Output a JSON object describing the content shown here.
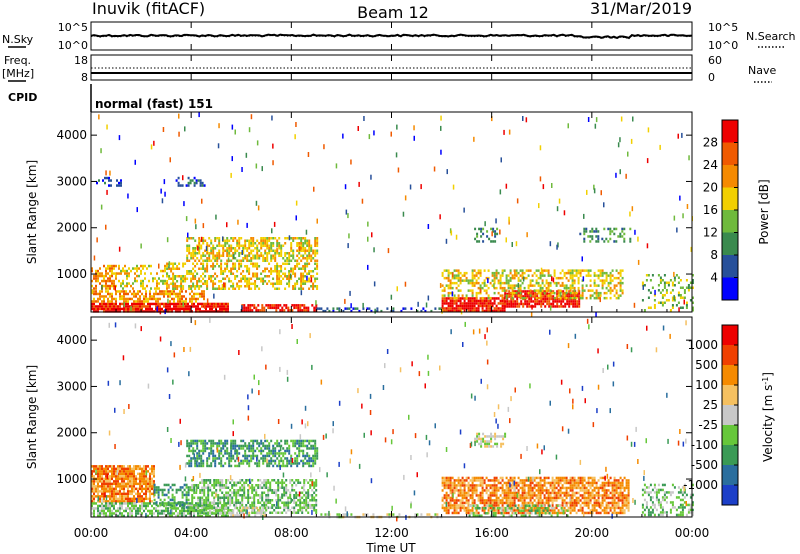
{
  "header": {
    "station": "Inuvik (fitACF)",
    "beam": "Beam 12",
    "date": "31/Mar/2019"
  },
  "top_panels": {
    "nsky_label": "N.Sky",
    "nsearch_label": "N.Search",
    "nsky_ticks": [
      "10^5",
      "10^0"
    ],
    "nsearch_ticks": [
      "10^5",
      "10^0"
    ],
    "freq_label": "Freq.",
    "freq_unit": "[MHz]",
    "freq_ticks": [
      "18",
      "8"
    ],
    "nave_label": "Nave",
    "nave_ticks": [
      "60",
      "0"
    ],
    "cpid_label": "CPID",
    "cpid_value": "normal (fast) 151"
  },
  "x_axis": {
    "label": "Time UT",
    "ticks": [
      "00:00",
      "04:00",
      "08:00",
      "12:00",
      "16:00",
      "20:00",
      "00:00"
    ]
  },
  "chart_data": [
    {
      "type": "heatmap",
      "name": "power",
      "ylabel": "Slant Range [km]",
      "yticks": [
        "1000",
        "2000",
        "3000",
        "4000"
      ],
      "ylim": [
        180,
        4500
      ],
      "xlim_hours": [
        0,
        24
      ],
      "colorbar_label": "Power [dB]",
      "colorbar_ticks": [
        "4",
        "8",
        "12",
        "16",
        "20",
        "24",
        "28"
      ],
      "colorbar_range": [
        0,
        32
      ],
      "colors": [
        "#0000ff",
        "#27509a",
        "#3a8a4e",
        "#6fba3c",
        "#f2d000",
        "#f58a00",
        "#f05a00",
        "#ee0000"
      ],
      "regions": [
        {
          "t0": 0.0,
          "t1": 5.5,
          "r0": 200,
          "r1": 380,
          "level": 7,
          "density": 0.9
        },
        {
          "t0": 6.0,
          "t1": 9.0,
          "r0": 200,
          "r1": 350,
          "level": 7,
          "density": 0.7
        },
        {
          "t0": 0.0,
          "t1": 4.5,
          "r0": 380,
          "r1": 650,
          "level": 5,
          "density": 0.6
        },
        {
          "t0": 0.0,
          "t1": 1.0,
          "r0": 700,
          "r1": 1200,
          "level": 5,
          "density": 0.6
        },
        {
          "t0": 1.0,
          "t1": 3.0,
          "r0": 700,
          "r1": 1200,
          "level": 4,
          "density": 0.35
        },
        {
          "t0": 3.0,
          "t1": 9.0,
          "r0": 700,
          "r1": 1250,
          "level": 4,
          "density": 0.5
        },
        {
          "t0": 3.8,
          "t1": 9.0,
          "r0": 1300,
          "r1": 1800,
          "level": 4,
          "density": 0.6
        },
        {
          "t0": 0.2,
          "t1": 1.2,
          "r0": 2900,
          "r1": 3100,
          "level": 1,
          "density": 0.3
        },
        {
          "t0": 3.3,
          "t1": 4.5,
          "r0": 2900,
          "r1": 3100,
          "level": 1,
          "density": 0.3
        },
        {
          "t0": 9.0,
          "t1": 14.0,
          "r0": 180,
          "r1": 280,
          "level": 1,
          "density": 0.4
        },
        {
          "t0": 14.0,
          "t1": 16.5,
          "r0": 200,
          "r1": 500,
          "level": 7,
          "density": 0.9
        },
        {
          "t0": 16.5,
          "t1": 19.5,
          "r0": 300,
          "r1": 650,
          "level": 7,
          "density": 0.8
        },
        {
          "t0": 14.0,
          "t1": 21.2,
          "r0": 500,
          "r1": 1100,
          "level": 4,
          "density": 0.45
        },
        {
          "t0": 15.3,
          "t1": 16.2,
          "r0": 1700,
          "r1": 2000,
          "level": 2,
          "density": 0.4
        },
        {
          "t0": 19.5,
          "t1": 21.5,
          "r0": 1700,
          "r1": 2000,
          "level": 2,
          "density": 0.3
        },
        {
          "t0": 22.0,
          "t1": 24.0,
          "r0": 200,
          "r1": 1000,
          "level": 3,
          "density": 0.3
        }
      ]
    },
    {
      "type": "heatmap",
      "name": "velocity",
      "ylabel": "Slant Range [km]",
      "yticks": [
        "1000",
        "2000",
        "3000",
        "4000"
      ],
      "ylim": [
        180,
        4500
      ],
      "xlim_hours": [
        0,
        24
      ],
      "colorbar_label": "Velocity [m s^-1]",
      "colorbar_ticks": [
        "1000",
        "500",
        "100",
        "25",
        "-25",
        "-100",
        "-500",
        "-1000"
      ],
      "colors": [
        "#1c3fc8",
        "#2a6e9e",
        "#3a9a55",
        "#66c73a",
        "#c8c8c8",
        "#f5c060",
        "#f58a00",
        "#f04000",
        "#ee0000"
      ],
      "regions": [
        {
          "t0": 0.0,
          "t1": 2.5,
          "r0": 500,
          "r1": 1300,
          "level": 6,
          "density": 0.85
        },
        {
          "t0": 0.0,
          "t1": 5.5,
          "r0": 200,
          "r1": 500,
          "level": 3,
          "density": 0.7
        },
        {
          "t0": 2.5,
          "t1": 4.0,
          "r0": 400,
          "r1": 900,
          "level": 2,
          "density": 0.5
        },
        {
          "t0": 4.0,
          "t1": 9.0,
          "r0": 250,
          "r1": 1000,
          "level": 3,
          "density": 0.6
        },
        {
          "t0": 5.0,
          "t1": 7.0,
          "r0": 200,
          "r1": 400,
          "level": 4,
          "density": 0.5
        },
        {
          "t0": 3.8,
          "t1": 9.0,
          "r0": 1300,
          "r1": 1850,
          "level": 2,
          "density": 0.6
        },
        {
          "t0": 9.0,
          "t1": 14.0,
          "r0": 180,
          "r1": 260,
          "level": 4,
          "density": 0.35
        },
        {
          "t0": 14.0,
          "t1": 21.5,
          "r0": 250,
          "r1": 1050,
          "level": 6,
          "density": 0.75
        },
        {
          "t0": 15.0,
          "t1": 19.0,
          "r0": 200,
          "r1": 450,
          "level": 3,
          "density": 0.4
        },
        {
          "t0": 15.3,
          "t1": 16.5,
          "r0": 1700,
          "r1": 2000,
          "level": 4,
          "density": 0.5
        },
        {
          "t0": 22.0,
          "t1": 24.0,
          "r0": 250,
          "r1": 900,
          "level": 3,
          "density": 0.35
        }
      ]
    }
  ]
}
